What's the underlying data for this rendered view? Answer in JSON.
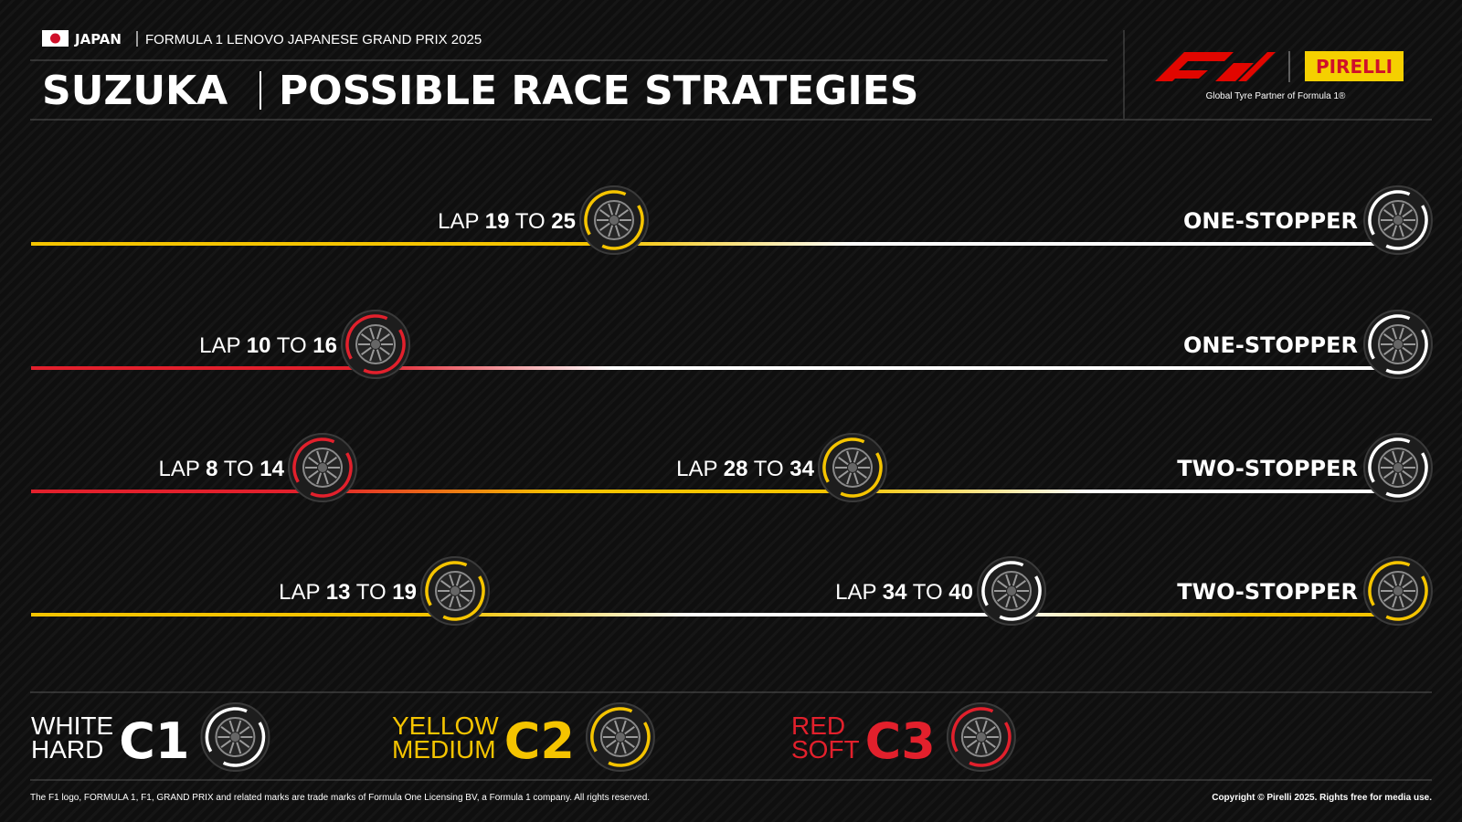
{
  "header": {
    "country": "JAPAN",
    "event": "FORMULA 1 LENOVO JAPANESE GRAND PRIX 2025",
    "circuit": "SUZUKA",
    "title": "POSSIBLE RACE STRATEGIES",
    "brand": "PIRELLI",
    "partner": "Global Tyre Partner of Formula 1®"
  },
  "strategies": [
    {
      "name": "ONE-STOPPER",
      "stints": [
        {
          "color": "#f5c400"
        },
        {
          "color": "#ffffff"
        }
      ],
      "stops": [
        {
          "lap": "LAP",
          "from": 19,
          "to_word": "TO",
          "to": 25
        }
      ]
    },
    {
      "name": "ONE-STOPPER",
      "stints": [
        {
          "color": "#e2202c"
        },
        {
          "color": "#ffffff"
        }
      ],
      "stops": [
        {
          "lap": "LAP",
          "from": 10,
          "to_word": "TO",
          "to": 16
        }
      ]
    },
    {
      "name": "TWO-STOPPER",
      "stints": [
        {
          "color": "#e2202c"
        },
        {
          "color": "#f5c400"
        },
        {
          "color": "#ffffff"
        }
      ],
      "stops": [
        {
          "lap": "LAP",
          "from": 8,
          "to_word": "TO",
          "to": 14
        },
        {
          "lap": "LAP",
          "from": 28,
          "to_word": "TO",
          "to": 34
        }
      ]
    },
    {
      "name": "TWO-STOPPER",
      "stints": [
        {
          "color": "#f5c400"
        },
        {
          "color": "#ffffff"
        },
        {
          "color": "#f5c400"
        }
      ],
      "stops": [
        {
          "lap": "LAP",
          "from": 13,
          "to_word": "TO",
          "to": 19
        },
        {
          "lap": "LAP",
          "from": 34,
          "to_word": "TO",
          "to": 40
        }
      ]
    }
  ],
  "legend": [
    {
      "color_name": "WHITE",
      "name": "HARD",
      "code": "C1",
      "color": "#ffffff"
    },
    {
      "color_name": "YELLOW",
      "name": "MEDIUM",
      "code": "C2",
      "color": "#f5c400"
    },
    {
      "color_name": "RED",
      "name": "SOFT",
      "code": "C3",
      "color": "#e2202c"
    }
  ],
  "footer": {
    "disclaimer": "The F1 logo, FORMULA 1, F1, GRAND PRIX and related marks are trade marks of Formula One Licensing BV, a Formula 1 company. All rights reserved.",
    "copyright": "Copyright © Pirelli 2025. Rights free for media use."
  }
}
